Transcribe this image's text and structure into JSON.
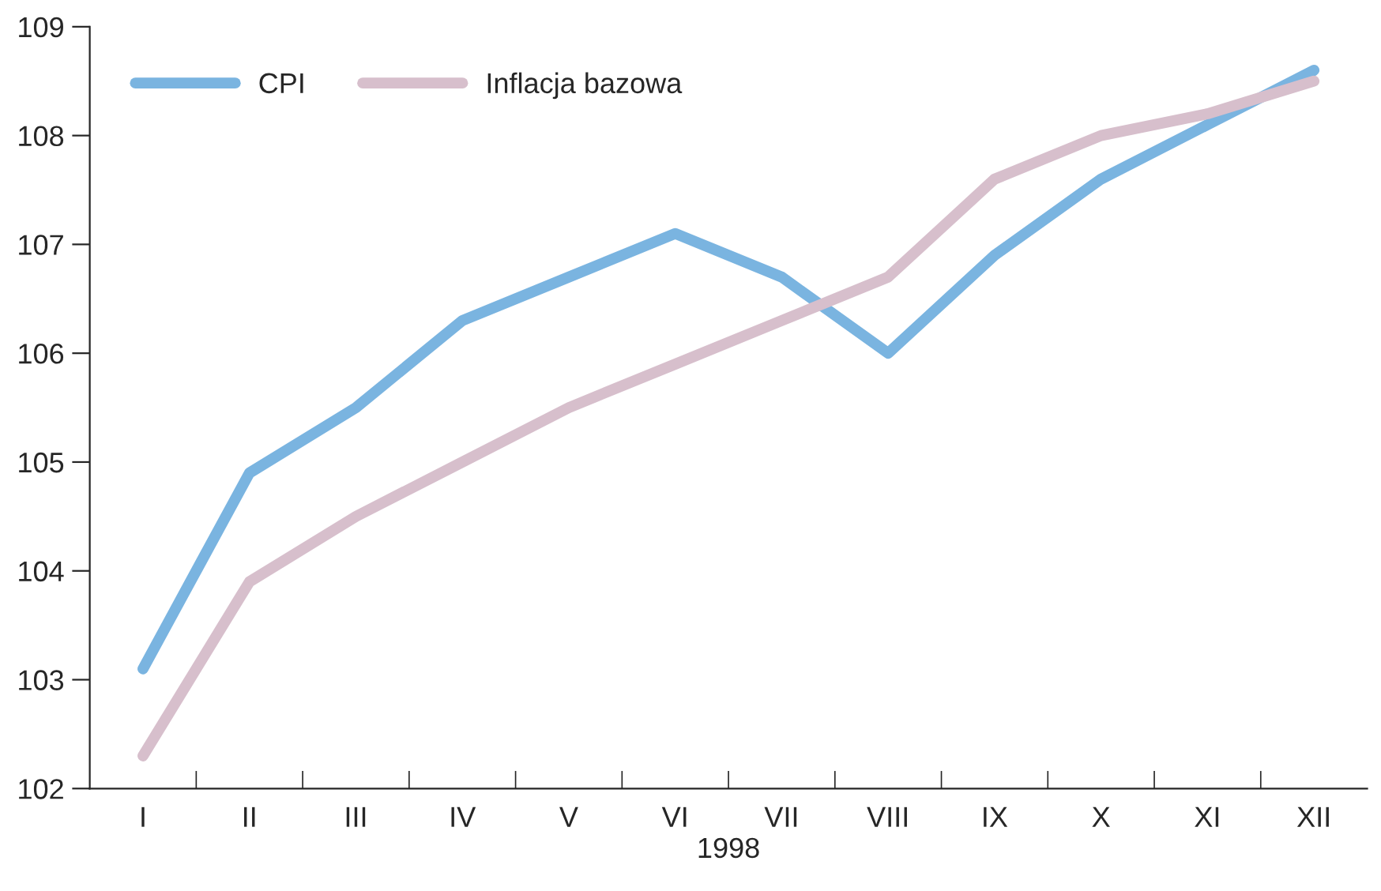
{
  "chart_data": {
    "type": "line",
    "xlabel": "1998",
    "categories": [
      "I",
      "II",
      "III",
      "IV",
      "V",
      "VI",
      "VII",
      "VIII",
      "IX",
      "X",
      "XI",
      "XII"
    ],
    "series": [
      {
        "name": "CPI",
        "color": "#7ab4e0",
        "values": [
          103.1,
          104.9,
          105.5,
          106.3,
          106.7,
          107.1,
          106.7,
          106.0,
          106.9,
          107.6,
          108.1,
          108.6
        ]
      },
      {
        "name": "Inflacja bazowa",
        "color": "#d7bfcc",
        "values": [
          102.3,
          103.9,
          104.5,
          105.0,
          105.5,
          105.9,
          106.3,
          106.7,
          107.6,
          108.0,
          108.2,
          108.5
        ]
      }
    ],
    "ylim": [
      102,
      109
    ],
    "yticks": [
      102,
      103,
      104,
      105,
      106,
      107,
      108,
      109
    ],
    "grid": false,
    "legend": "top left",
    "marker": "none",
    "line_style": "solid"
  }
}
